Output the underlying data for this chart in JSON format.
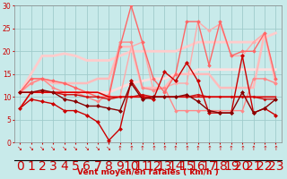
{
  "x": [
    0,
    1,
    2,
    3,
    4,
    5,
    6,
    7,
    8,
    9,
    10,
    11,
    12,
    13,
    14,
    15,
    16,
    17,
    18,
    19,
    20,
    21,
    22,
    23
  ],
  "background_color": "#c8eaea",
  "grid_color": "#a0cccc",
  "xlabel": "Vent moyen/en rafales ( km/h )",
  "ylim": [
    0,
    30
  ],
  "xlim": [
    -0.5,
    23.5
  ],
  "yticks": [
    0,
    5,
    10,
    15,
    20,
    25,
    30
  ],
  "lines": [
    {
      "y": [
        7.5,
        11,
        11,
        11,
        11,
        11,
        11,
        11,
        10,
        10,
        10,
        10,
        10,
        10,
        10,
        10,
        10,
        10,
        10,
        10,
        10,
        10,
        10,
        10
      ],
      "color": "#dd0000",
      "lw": 1.2,
      "marker": null,
      "zorder": 5
    },
    {
      "y": [
        11,
        11,
        11,
        11,
        10.5,
        10.5,
        10,
        10,
        9.5,
        10,
        10,
        10.5,
        10,
        10,
        10,
        10,
        10.5,
        10,
        10,
        10,
        10,
        10,
        9.5,
        9.5
      ],
      "color": "#cc1111",
      "lw": 1.0,
      "marker": "D",
      "ms": 1.5,
      "zorder": 4
    },
    {
      "y": [
        7.5,
        9.5,
        9,
        8.5,
        7,
        7,
        6,
        4.5,
        0.5,
        3,
        13.5,
        10,
        9.5,
        15.5,
        13.5,
        17.5,
        13.5,
        6.5,
        6.5,
        6.5,
        19,
        6.5,
        7.5,
        6
      ],
      "color": "#cc0000",
      "lw": 1.0,
      "marker": "D",
      "ms": 2.0,
      "zorder": 6
    },
    {
      "y": [
        11,
        11,
        11.5,
        11,
        9.5,
        9,
        8,
        8,
        7.5,
        7,
        13,
        9.5,
        10,
        10,
        10,
        10.5,
        9,
        7,
        6.5,
        6.5,
        11,
        6.5,
        7.5,
        9.5
      ],
      "color": "#880000",
      "lw": 1.0,
      "marker": "D",
      "ms": 2.0,
      "zorder": 6
    },
    {
      "y": [
        11,
        13,
        14,
        12,
        11,
        11,
        10,
        9,
        10.5,
        22,
        22,
        12,
        11.5,
        12,
        7,
        7,
        7,
        7,
        7,
        7,
        7,
        14,
        14,
        13
      ],
      "color": "#ff8888",
      "lw": 1.0,
      "marker": "D",
      "ms": 1.8,
      "zorder": 3
    },
    {
      "y": [
        11,
        14,
        14,
        13.5,
        13,
        12,
        11,
        10,
        10,
        21,
        30,
        22,
        14,
        11,
        15,
        26.5,
        26.5,
        17,
        26.5,
        19,
        20,
        20,
        24,
        14
      ],
      "color": "#ff6666",
      "lw": 1.0,
      "marker": "D",
      "ms": 1.8,
      "zorder": 3
    },
    {
      "y": [
        11,
        14,
        14,
        13.5,
        13,
        12,
        11,
        10,
        10,
        10,
        21,
        22,
        11.5,
        12,
        13,
        13,
        26.5,
        24.5,
        26,
        19,
        19,
        22,
        24,
        13
      ],
      "color": "#ffaaaa",
      "lw": 1.0,
      "marker": "D",
      "ms": 1.8,
      "zorder": 2
    },
    {
      "y": [
        11,
        13,
        14,
        13,
        13,
        13,
        13,
        14,
        14,
        21,
        21,
        12,
        12,
        12,
        15,
        15,
        15,
        15,
        12,
        12,
        12,
        12,
        24,
        13
      ],
      "color": "#ffbbbb",
      "lw": 1.8,
      "marker": null,
      "zorder": 2
    },
    {
      "y": [
        11,
        15,
        19,
        19,
        19.5,
        19,
        18,
        18,
        18,
        19,
        20,
        20,
        20,
        20,
        20,
        21,
        22,
        22,
        22,
        22,
        22,
        22,
        23,
        24
      ],
      "color": "#ffcccc",
      "lw": 2.0,
      "marker": null,
      "zorder": 1
    },
    {
      "y": [
        11,
        11,
        11,
        11,
        11,
        11,
        11,
        11,
        11,
        12,
        13,
        13.5,
        14,
        14,
        15,
        15,
        16,
        16,
        16,
        16,
        16,
        16,
        16,
        16
      ],
      "color": "#ffdddd",
      "lw": 2.0,
      "marker": null,
      "zorder": 1
    }
  ],
  "wind_symbols_down": [
    0,
    1,
    2,
    3,
    4,
    5,
    6,
    7,
    8
  ],
  "wind_symbols_up": [
    9,
    10,
    11,
    12,
    13,
    14,
    15,
    16,
    17,
    18,
    19,
    20,
    21,
    22,
    23
  ],
  "down_symbol": "↘",
  "up_symbol": "↑"
}
